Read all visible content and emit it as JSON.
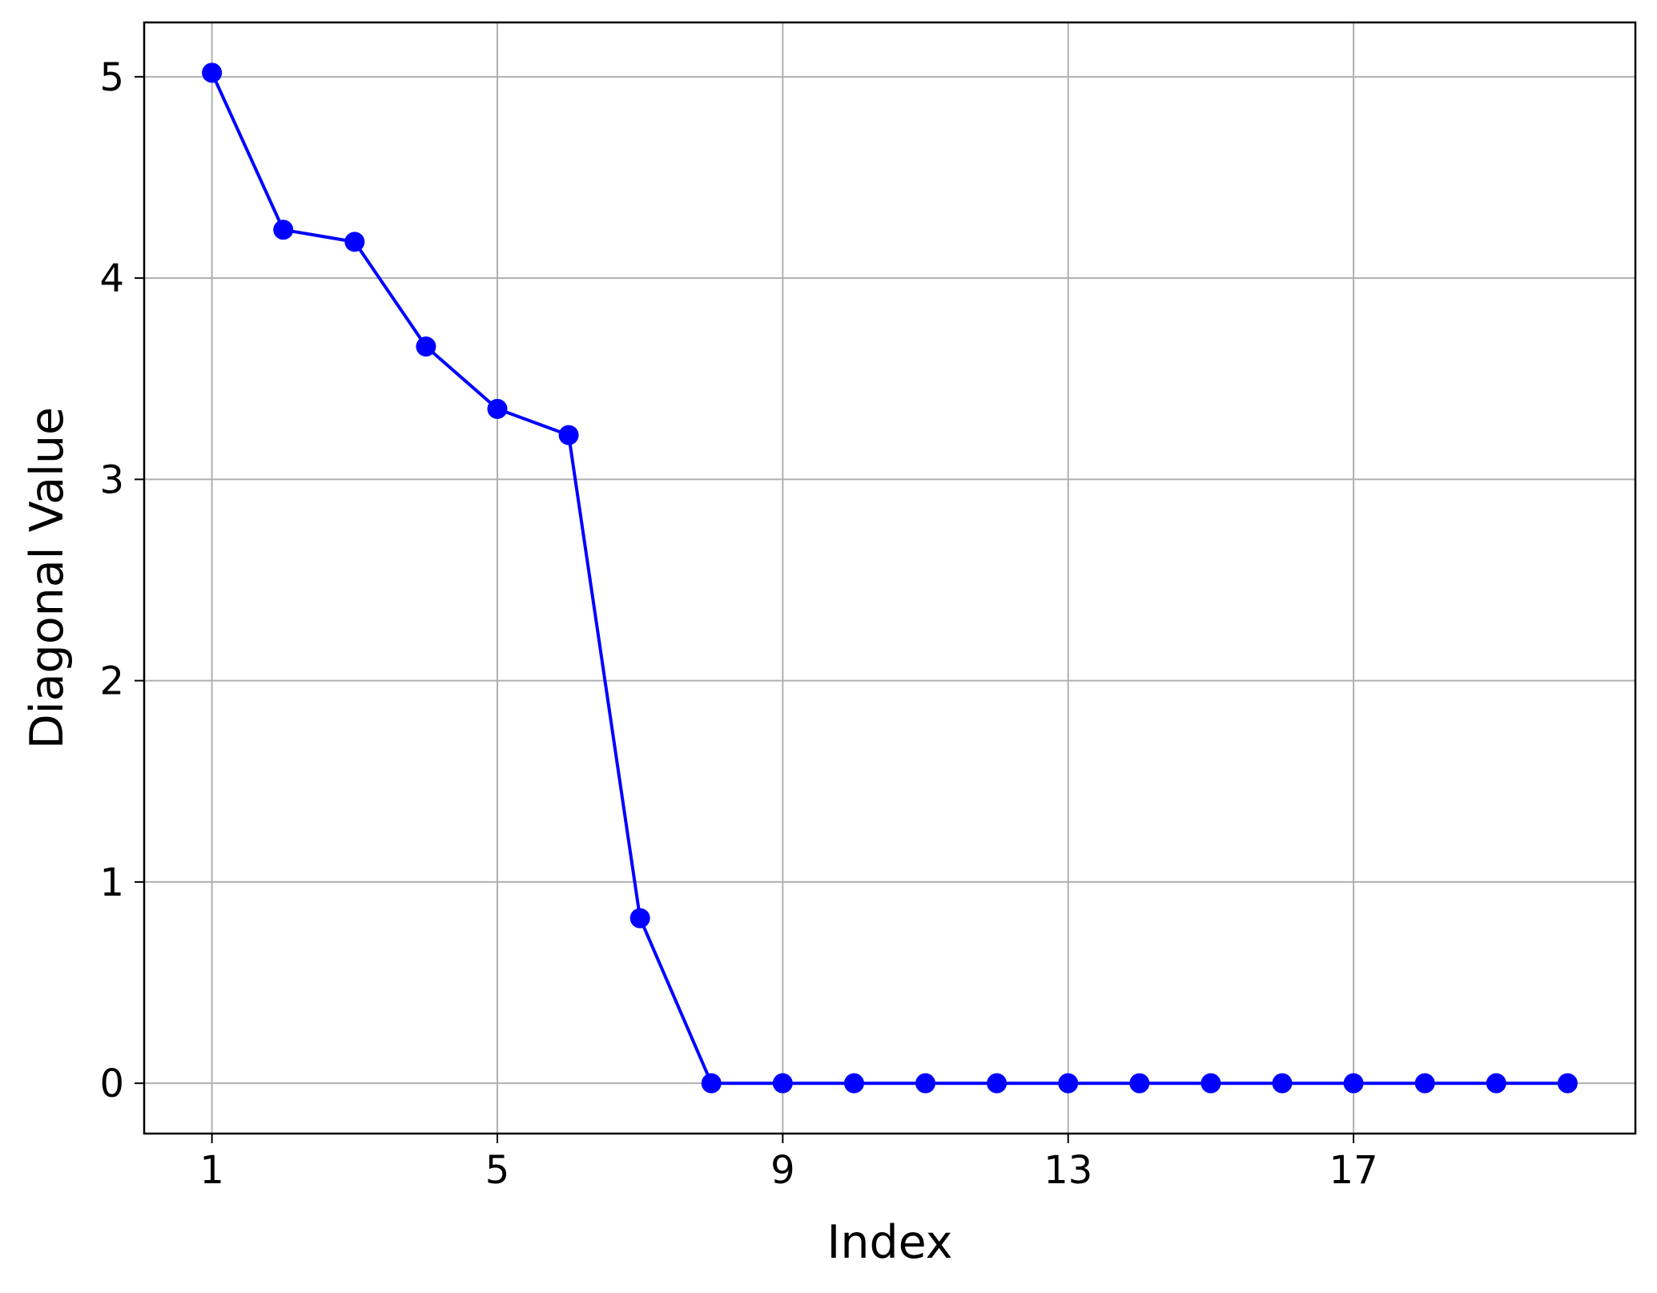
{
  "chart_data": {
    "type": "line",
    "title": "",
    "xlabel": "Index",
    "ylabel": "Diagonal Value",
    "xlim": [
      0.05,
      20.95
    ],
    "ylim": [
      -0.25,
      5.27
    ],
    "xticks": [
      1,
      5,
      9,
      13,
      17
    ],
    "yticks": [
      0,
      1,
      2,
      3,
      4,
      5
    ],
    "grid": true,
    "legend": "none",
    "colors": {
      "line": "#0000ff",
      "marker": "#0000ff",
      "grid": "#b0b0b0",
      "axes": "#000000"
    },
    "series": [
      {
        "x": [
          1,
          2,
          3,
          4,
          5,
          6,
          7,
          8,
          9,
          10,
          11,
          12,
          13,
          14,
          15,
          16,
          17,
          18,
          19,
          20
        ],
        "y": [
          5.02,
          4.24,
          4.18,
          3.66,
          3.35,
          3.22,
          0.82,
          0,
          0,
          0,
          0,
          0,
          0,
          0,
          0,
          0,
          0,
          0,
          0,
          0
        ]
      }
    ]
  }
}
